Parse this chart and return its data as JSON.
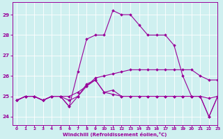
{
  "xlabel": "Windchill (Refroidissement éolien,°C)",
  "ylabel": "",
  "background_color": "#cff0f0",
  "line_color": "#990099",
  "xlim": [
    -0.5,
    23
  ],
  "ylim": [
    23.6,
    29.6
  ],
  "yticks": [
    24,
    25,
    26,
    27,
    28,
    29
  ],
  "xticks": [
    0,
    1,
    2,
    3,
    4,
    5,
    6,
    7,
    8,
    9,
    10,
    11,
    12,
    13,
    14,
    15,
    16,
    17,
    18,
    19,
    20,
    21,
    22,
    23
  ],
  "series": [
    [
      24.8,
      25.0,
      25.0,
      24.8,
      25.0,
      25.0,
      24.8,
      25.0,
      25.5,
      25.8,
      25.2,
      25.1,
      25.0,
      25.0,
      25.0,
      25.0,
      25.0,
      25.0,
      25.0,
      25.0,
      25.0,
      25.0,
      24.9,
      25.0
    ],
    [
      24.8,
      25.0,
      25.0,
      24.8,
      25.0,
      25.0,
      25.0,
      25.2,
      25.5,
      25.9,
      26.0,
      26.1,
      26.2,
      26.3,
      26.3,
      26.3,
      26.3,
      26.3,
      26.3,
      26.3,
      26.3,
      26.0,
      25.8,
      25.8
    ],
    [
      24.8,
      25.0,
      25.0,
      24.8,
      25.0,
      25.0,
      24.5,
      25.0,
      25.6,
      25.8,
      25.2,
      25.3,
      25.0,
      25.0,
      25.0,
      25.0,
      25.0,
      25.0,
      25.0,
      25.0,
      25.0,
      25.0,
      24.0,
      25.0
    ],
    [
      24.8,
      25.0,
      25.0,
      24.8,
      25.0,
      25.0,
      24.5,
      26.2,
      27.8,
      28.0,
      28.0,
      29.2,
      29.0,
      29.0,
      28.5,
      28.0,
      28.0,
      28.0,
      27.5,
      26.0,
      25.0,
      25.0,
      24.0,
      25.0
    ]
  ],
  "xlabel_fontsize": 5.0,
  "xtick_fontsize": 4.2,
  "ytick_fontsize": 5.2,
  "marker_size": 1.8,
  "linewidth": 0.8
}
